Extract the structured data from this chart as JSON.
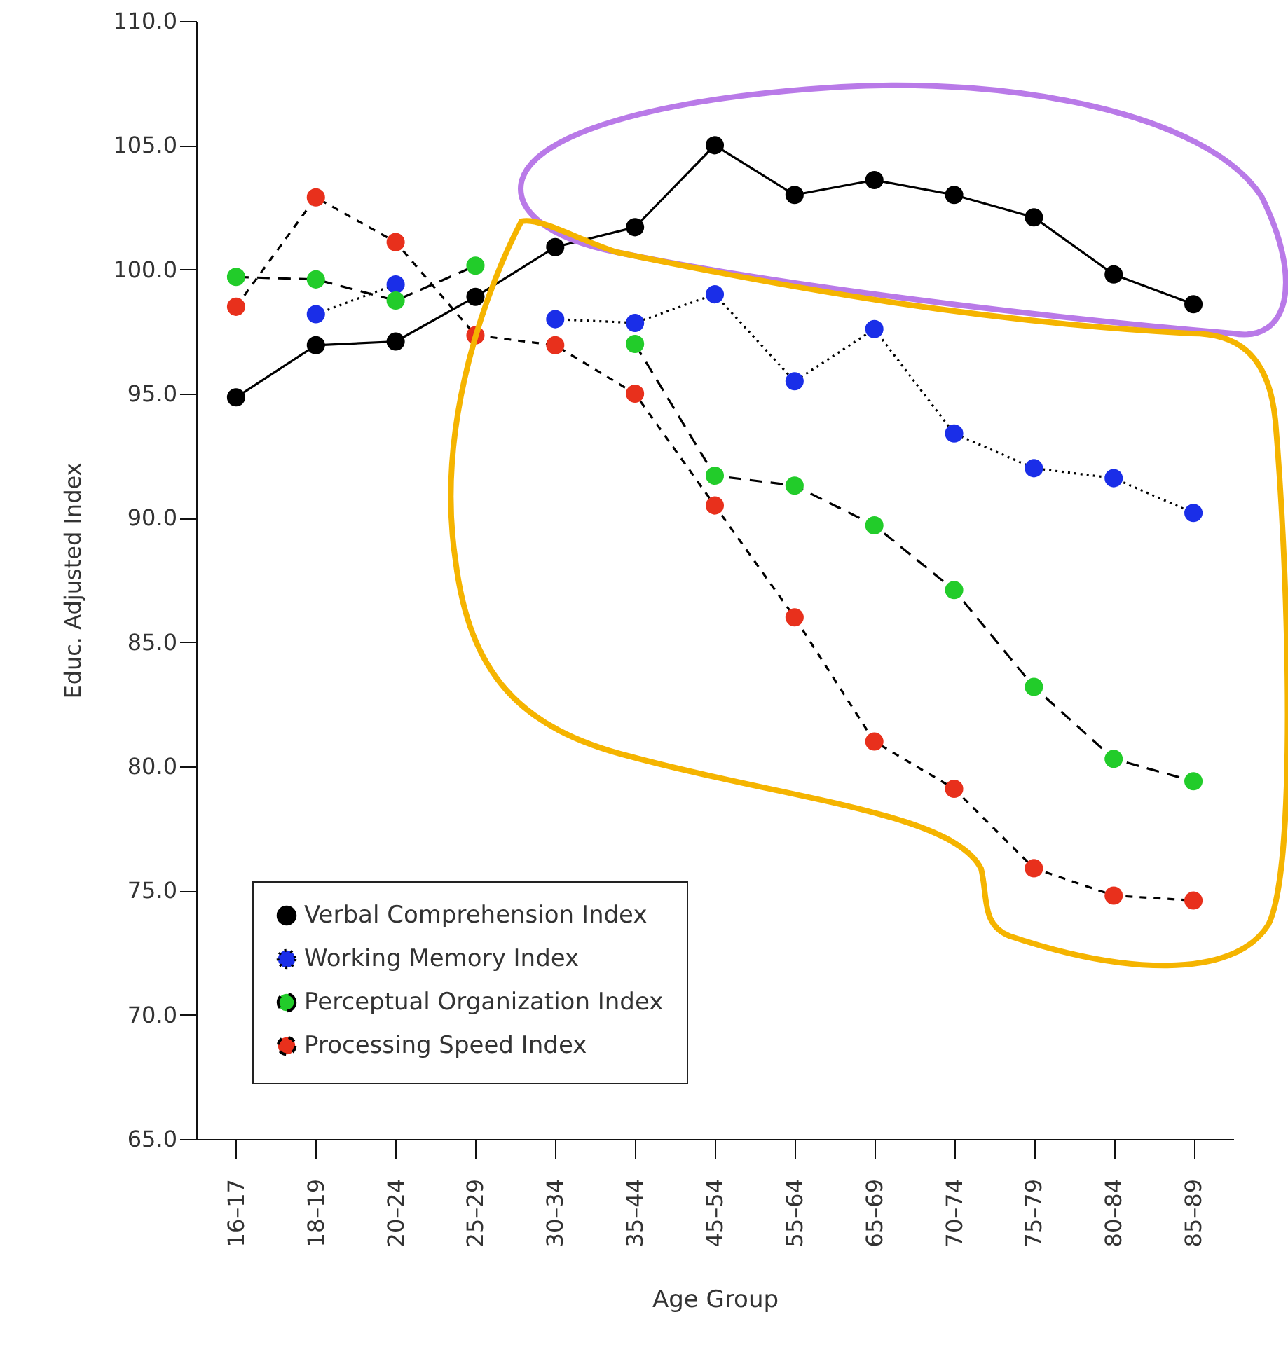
{
  "chart_data": {
    "type": "line",
    "xlabel": "Age Group",
    "ylabel": "Educ. Adjusted Index",
    "categories": [
      "16–17",
      "18–19",
      "20–24",
      "25–29",
      "30–34",
      "35–44",
      "45–54",
      "55–64",
      "65–69",
      "70–74",
      "75–79",
      "80–84",
      "85–89"
    ],
    "series": [
      {
        "name": "Verbal Comprehension Index",
        "color": "#000000",
        "line_style": "solid",
        "values": [
          94.85,
          96.95,
          97.1,
          98.9,
          100.9,
          101.7,
          105.0,
          103.0,
          103.6,
          103.0,
          102.1,
          99.8,
          98.6
        ]
      },
      {
        "name": "Working Memory Index",
        "color": "#1a2ee8",
        "line_style": "dotted",
        "values": [
          null,
          98.2,
          99.4,
          null,
          98.0,
          97.85,
          99.0,
          95.5,
          97.6,
          93.4,
          92.0,
          91.6,
          90.2
        ]
      },
      {
        "name": "Perceptual Organization Index",
        "color": "#22cc2a",
        "line_style": "dashed",
        "values": [
          99.7,
          99.6,
          98.75,
          100.15,
          null,
          97.0,
          91.7,
          91.3,
          89.7,
          87.1,
          83.2,
          80.3,
          79.4
        ]
      },
      {
        "name": "Processing Speed Index",
        "color": "#e8301c",
        "line_style": "shortdash",
        "values": [
          98.5,
          102.9,
          101.1,
          97.35,
          96.95,
          95.0,
          90.5,
          86.0,
          81.0,
          79.1,
          75.9,
          74.8,
          74.6
        ]
      }
    ],
    "ylim": [
      65,
      110
    ],
    "yticks": [
      {
        "value": 65,
        "label": "65.0"
      },
      {
        "value": 70,
        "label": "70.0"
      },
      {
        "value": 75,
        "label": "75.0"
      },
      {
        "value": 80,
        "label": "80.0"
      },
      {
        "value": 85,
        "label": "85.0"
      },
      {
        "value": 90,
        "label": "90.0"
      },
      {
        "value": 95,
        "label": "95.0"
      },
      {
        "value": 100,
        "label": "100.0"
      },
      {
        "value": 105,
        "label": "105.0"
      },
      {
        "value": 110,
        "label": "110.0"
      }
    ],
    "grid": false,
    "legend": "bottom left",
    "marker": "circle"
  }
}
